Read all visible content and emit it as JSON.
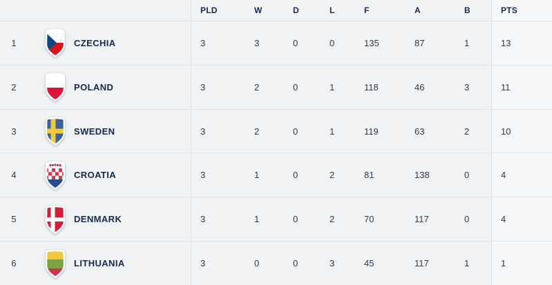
{
  "table": {
    "columns": [
      {
        "key": "pld",
        "label": "PLD"
      },
      {
        "key": "w",
        "label": "W"
      },
      {
        "key": "d",
        "label": "D"
      },
      {
        "key": "l",
        "label": "L"
      },
      {
        "key": "f",
        "label": "F"
      },
      {
        "key": "a",
        "label": "A"
      },
      {
        "key": "b",
        "label": "B"
      },
      {
        "key": "pts",
        "label": "PTS"
      }
    ],
    "rows": [
      {
        "rank": "1",
        "team": "CZECHIA",
        "flag": "czechia",
        "pld": "3",
        "w": "3",
        "d": "0",
        "l": "0",
        "f": "135",
        "a": "87",
        "b": "1",
        "pts": "13"
      },
      {
        "rank": "2",
        "team": "POLAND",
        "flag": "poland",
        "pld": "3",
        "w": "2",
        "d": "0",
        "l": "1",
        "f": "118",
        "a": "46",
        "b": "3",
        "pts": "11"
      },
      {
        "rank": "3",
        "team": "SWEDEN",
        "flag": "sweden",
        "pld": "3",
        "w": "2",
        "d": "0",
        "l": "1",
        "f": "119",
        "a": "63",
        "b": "2",
        "pts": "10"
      },
      {
        "rank": "4",
        "team": "CROATIA",
        "flag": "croatia",
        "pld": "3",
        "w": "1",
        "d": "0",
        "l": "2",
        "f": "81",
        "a": "138",
        "b": "0",
        "pts": "4"
      },
      {
        "rank": "5",
        "team": "DENMARK",
        "flag": "denmark",
        "pld": "3",
        "w": "1",
        "d": "0",
        "l": "2",
        "f": "70",
        "a": "117",
        "b": "0",
        "pts": "4"
      },
      {
        "rank": "6",
        "team": "LITHUANIA",
        "flag": "lithuania",
        "pld": "3",
        "w": "0",
        "d": "0",
        "l": "3",
        "f": "45",
        "a": "117",
        "b": "1",
        "pts": "1"
      }
    ]
  },
  "colors": {
    "row_background": "#f0f2f4",
    "pts_column_background": "#f6f7f9",
    "row_separator": "#dde3ea",
    "column_divider": "#dce3ed",
    "header_text": "#15294b",
    "team_text": "#15294b",
    "number_text": "#2c3950"
  }
}
